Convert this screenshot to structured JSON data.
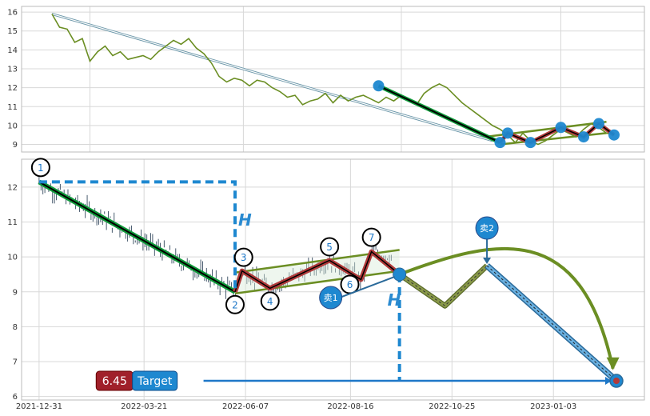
{
  "colors": {
    "grid": "#d8d8d8",
    "frame": "#bbbbbb",
    "price_line": "#6b8e23",
    "down_trend": "#0f9b3a",
    "zigzag_fill": "#b03a3a",
    "channel": "#6b8e23",
    "marker_blue": "#1e88d0",
    "dashed_blue": "#1e88d0",
    "path_olive": "#8a9a4a",
    "path_light_blue": "#6ab0e0",
    "candle": "#34495e",
    "badge_red": "#a0202a",
    "badge_blue": "#1e88d0",
    "target_line": "#1e78c8"
  },
  "chart_data": [
    {
      "type": "line",
      "panel": "top",
      "ylim": [
        8.6,
        16.3
      ],
      "y_ticks": [
        "9",
        "10",
        "11",
        "12",
        "13",
        "14",
        "15",
        "16"
      ],
      "grid": true,
      "series": [
        {
          "points": [
            [
              0,
              15.9
            ],
            [
              0.5,
              15.2
            ],
            [
              1,
              15.1
            ],
            [
              1.5,
              14.4
            ],
            [
              2,
              14.6
            ],
            [
              2.5,
              13.4
            ],
            [
              3,
              13.9
            ],
            [
              3.5,
              14.2
            ],
            [
              4,
              13.7
            ],
            [
              4.5,
              13.9
            ],
            [
              5,
              13.5
            ],
            [
              5.5,
              13.6
            ],
            [
              6,
              13.7
            ],
            [
              6.5,
              13.5
            ],
            [
              7,
              13.9
            ],
            [
              7.5,
              14.2
            ],
            [
              8,
              14.5
            ],
            [
              8.5,
              14.3
            ],
            [
              9,
              14.6
            ],
            [
              9.5,
              14.1
            ],
            [
              10,
              13.8
            ],
            [
              10.5,
              13.3
            ],
            [
              11,
              12.6
            ],
            [
              11.5,
              12.3
            ],
            [
              12,
              12.5
            ],
            [
              12.5,
              12.4
            ],
            [
              13,
              12.1
            ],
            [
              13.5,
              12.4
            ],
            [
              14,
              12.3
            ],
            [
              14.5,
              12.0
            ],
            [
              15,
              11.8
            ],
            [
              15.5,
              11.5
            ],
            [
              16,
              11.6
            ],
            [
              16.5,
              11.1
            ],
            [
              17,
              11.3
            ],
            [
              17.5,
              11.4
            ],
            [
              18,
              11.7
            ],
            [
              18.5,
              11.2
            ],
            [
              19,
              11.6
            ],
            [
              19.5,
              11.3
            ],
            [
              20,
              11.5
            ],
            [
              20.5,
              11.6
            ],
            [
              21,
              11.4
            ],
            [
              21.5,
              11.2
            ],
            [
              22,
              11.5
            ],
            [
              22.5,
              11.3
            ],
            [
              23,
              11.6
            ],
            [
              23.5,
              11.4
            ],
            [
              24,
              11.1
            ],
            [
              24.5,
              11.7
            ],
            [
              25,
              12.0
            ],
            [
              25.5,
              12.2
            ],
            [
              26,
              12.0
            ],
            [
              26.5,
              11.6
            ],
            [
              27,
              11.2
            ],
            [
              27.5,
              10.9
            ],
            [
              28,
              10.6
            ],
            [
              28.5,
              10.3
            ],
            [
              29,
              10.0
            ],
            [
              29.5,
              9.8
            ],
            [
              30,
              9.5
            ],
            [
              30.5,
              9.1
            ],
            [
              31,
              9.6
            ],
            [
              31.5,
              9.2
            ],
            [
              32,
              9.0
            ],
            [
              32.5,
              9.2
            ],
            [
              33,
              9.5
            ],
            [
              33.5,
              9.8
            ],
            [
              34,
              9.6
            ],
            [
              34.5,
              9.4
            ],
            [
              35,
              9.8
            ],
            [
              35.5,
              10.1
            ],
            [
              36,
              9.9
            ],
            [
              36.5,
              9.6
            ],
            [
              37,
              9.5
            ]
          ]
        }
      ],
      "trend_down": [
        [
          21.5,
          12.1
        ],
        [
          29.5,
          9.1
        ]
      ],
      "long_diagonal": [
        [
          0,
          15.9
        ],
        [
          29,
          9.2
        ]
      ],
      "zigzag": [
        [
          29.5,
          9.1
        ],
        [
          30,
          9.6
        ],
        [
          31.5,
          9.1
        ],
        [
          33.5,
          9.9
        ],
        [
          35,
          9.4
        ],
        [
          36,
          10.1
        ],
        [
          37,
          9.5
        ]
      ],
      "channel_upper": [
        [
          28.5,
          9.4
        ],
        [
          36.5,
          10.2
        ]
      ],
      "channel_lower": [
        [
          29.5,
          9.0
        ],
        [
          36.5,
          9.6
        ]
      ],
      "markers": [
        [
          21.5,
          12.1
        ],
        [
          29.5,
          9.1
        ],
        [
          30,
          9.6
        ],
        [
          31.5,
          9.1
        ],
        [
          33.5,
          9.9
        ],
        [
          35,
          9.4
        ],
        [
          36,
          10.1
        ],
        [
          37,
          9.5
        ]
      ]
    },
    {
      "type": "candlestick",
      "panel": "bottom",
      "ylim": [
        5.9,
        12.8
      ],
      "y_ticks": [
        "6",
        "7",
        "8",
        "9",
        "10",
        "11",
        "12"
      ],
      "x_ticks": [
        "2021-12-31",
        "2022-03-21",
        "2022-06-07",
        "2022-08-16",
        "2022-10-25",
        "2023-01-03"
      ],
      "grid": true,
      "pivots": [
        {
          "label": "1",
          "x": 0,
          "y": 12.15
        },
        {
          "label": "2",
          "x": 56,
          "y": 9.0
        },
        {
          "label": "3",
          "x": 58,
          "y": 9.6
        },
        {
          "label": "4",
          "x": 66,
          "y": 9.1
        },
        {
          "label": "5",
          "x": 83,
          "y": 9.9
        },
        {
          "label": "6",
          "x": 92,
          "y": 9.35
        },
        {
          "label": "7",
          "x": 95,
          "y": 10.15
        }
      ],
      "trend_down": [
        [
          0,
          12.15
        ],
        [
          56,
          9.0
        ]
      ],
      "channel_upper": [
        [
          56,
          9.55
        ],
        [
          103,
          10.2
        ]
      ],
      "channel_lower": [
        [
          56,
          8.95
        ],
        [
          103,
          9.6
        ]
      ],
      "sell1": {
        "label": "卖1",
        "x": 103,
        "y": 9.5
      },
      "sell2": {
        "label": "卖2",
        "x": 128,
        "y": 9.75
      },
      "projection_olive": [
        [
          103,
          9.5
        ],
        [
          116,
          8.6
        ],
        [
          128,
          9.75
        ]
      ],
      "projection_blue": [
        [
          128,
          9.75
        ],
        [
          165,
          6.45
        ]
      ],
      "arc_end": [
        164,
        6.8
      ],
      "height_mark": "H",
      "h_box_level": 12.15,
      "target": {
        "value": "6.45",
        "label": "Target",
        "x": 165,
        "y": 6.45
      },
      "candles_seed": 7
    }
  ]
}
